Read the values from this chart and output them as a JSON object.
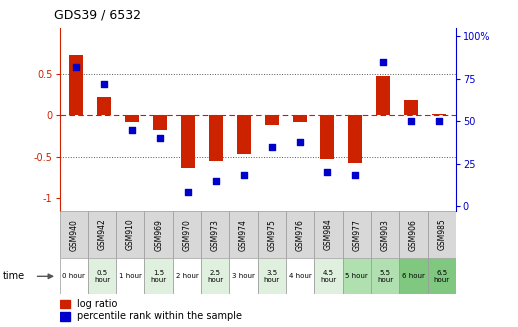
{
  "title": "GDS39 / 6532",
  "samples": [
    "GSM940",
    "GSM942",
    "GSM910",
    "GSM969",
    "GSM970",
    "GSM973",
    "GSM974",
    "GSM975",
    "GSM976",
    "GSM984",
    "GSM977",
    "GSM903",
    "GSM906",
    "GSM985"
  ],
  "time_labels": [
    "0 hour",
    "0.5\nhour",
    "1 hour",
    "1.5\nhour",
    "2 hour",
    "2.5\nhour",
    "3 hour",
    "3.5\nhour",
    "4 hour",
    "4.5\nhour",
    "5 hour",
    "5.5\nhour",
    "6 hour",
    "6.5\nhour"
  ],
  "log_ratio": [
    0.72,
    0.22,
    -0.08,
    -0.18,
    -0.63,
    -0.55,
    -0.47,
    -0.12,
    -0.08,
    -0.53,
    -0.58,
    0.47,
    0.18,
    0.02
  ],
  "percentile": [
    82,
    72,
    45,
    40,
    8,
    15,
    18,
    35,
    38,
    20,
    18,
    85,
    50,
    50
  ],
  "time_colors": [
    "#ffffff",
    "#dff0df",
    "#ffffff",
    "#dff0df",
    "#ffffff",
    "#dff0df",
    "#ffffff",
    "#dff0df",
    "#ffffff",
    "#dff0df",
    "#b0dfb0",
    "#b0dfb0",
    "#80c880",
    "#80c880"
  ],
  "bar_color": "#cc2200",
  "dot_color": "#0000cc",
  "bg_color": "#ffffff",
  "ylim_left": [
    -1.15,
    1.05
  ],
  "ylim_right": [
    -2.875,
    105
  ],
  "yticks_left": [
    -1,
    -0.5,
    0,
    0.5
  ],
  "ytick_labels_left": [
    "-1",
    "-0.5",
    "0",
    "0.5"
  ],
  "yticks_right": [
    0,
    25,
    50,
    75,
    100
  ],
  "ytick_labels_right": [
    "0",
    "25",
    "50",
    "75",
    "100%"
  ],
  "legend_log_ratio": "log ratio",
  "legend_percentile": "percentile rank within the sample"
}
